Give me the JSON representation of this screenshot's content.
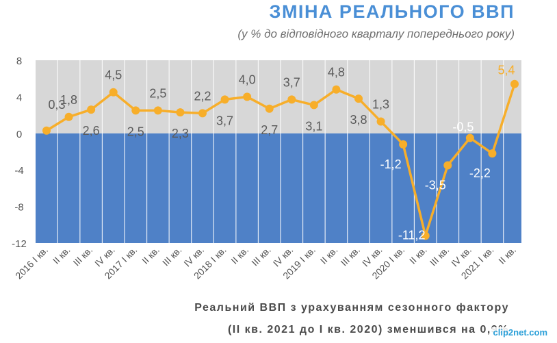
{
  "title": "ЗМІНА РЕАЛЬНОГО ВВП",
  "subtitle": "(у % до відповідного кварталу попереднього року)",
  "note_line1": "Реальний ВВП з урахуванням сезонного фактору",
  "note_line2": "(ІІ кв. 2021 до І кв. 2020) зменшився на 0,9%",
  "watermark": "clip2net.com",
  "colors": {
    "line": "#f7ae2a",
    "last_label": "#f7ae2a",
    "positive_band": "#d7d7d7",
    "negative_band": "#4f81c7",
    "title": "#4a8fd6"
  },
  "chart_data": {
    "type": "line",
    "categories": [
      "2016 I кв.",
      "II кв.",
      "III кв.",
      "IV кв.",
      "2017 I кв.",
      "II кв.",
      "III кв.",
      "IV кв.",
      "2018 I кв.",
      "II кв.",
      "III кв.",
      "IV кв.",
      "2019 I кв.",
      "II кв.",
      "III кв.",
      "IV кв.",
      "2020 I кв.",
      "II кв.",
      "III кв.",
      "IV кв.",
      "2021 I кв.",
      "II кв."
    ],
    "values": [
      0.3,
      1.8,
      2.6,
      4.5,
      2.5,
      2.5,
      2.3,
      2.2,
      3.7,
      4.0,
      2.7,
      3.7,
      3.1,
      4.8,
      3.8,
      1.3,
      -1.2,
      -11.2,
      -3.5,
      -0.5,
      -2.2,
      5.4
    ],
    "data_labels": [
      "0,3",
      "1,8",
      "2,6",
      "4,5",
      "2,5",
      "2,5",
      "2,3",
      "2,2",
      "3,7",
      "4,0",
      "2,7",
      "3,7",
      "3,1",
      "4,8",
      "3,8",
      "1,3",
      "-1,2",
      "-11,2",
      "-3,5",
      "-0,5",
      "-2,2",
      "5,4"
    ],
    "ylim": [
      -12,
      8
    ],
    "yticks": [
      8,
      4,
      0,
      -4,
      -8,
      -12
    ],
    "ytick_labels": [
      "8",
      "4",
      "0",
      "-4",
      "-8",
      "-12"
    ],
    "grid": true
  }
}
